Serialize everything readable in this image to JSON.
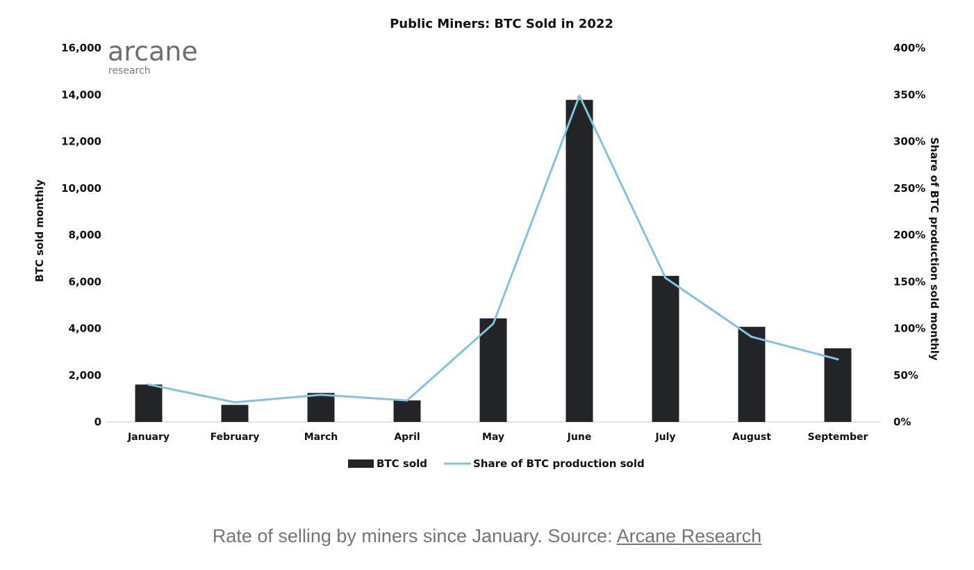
{
  "chart_data": {
    "type": "bar",
    "title": "Public Miners: BTC Sold in 2022",
    "xlabel": "",
    "ylabel": "BTC sold monthly",
    "y2label": "Share of BTC production sold monthly",
    "categories": [
      "January",
      "February",
      "March",
      "April",
      "May",
      "June",
      "July",
      "August",
      "September"
    ],
    "ylim": [
      0,
      16000
    ],
    "y2lim": [
      0,
      400
    ],
    "yticks": [
      "0",
      "2,000",
      "4,000",
      "6,000",
      "8,000",
      "10,000",
      "12,000",
      "14,000",
      "16,000"
    ],
    "y2ticks": [
      "0%",
      "50%",
      "100%",
      "150%",
      "200%",
      "250%",
      "300%",
      "350%",
      "400%"
    ],
    "grid": false,
    "legend_position": "bottom",
    "series": [
      {
        "name": "BTC sold",
        "type": "bar",
        "axis": "left",
        "color": "#222428",
        "values": [
          1600,
          730,
          1240,
          920,
          4430,
          13780,
          6250,
          4070,
          3150
        ]
      },
      {
        "name": "Share of BTC production sold",
        "type": "line",
        "axis": "right",
        "color": "#80c4e2",
        "values": [
          40,
          21,
          29,
          23,
          105,
          349,
          154,
          91,
          67
        ]
      }
    ]
  },
  "logo": {
    "name": "arcane",
    "subtitle": "research"
  },
  "caption": {
    "text": "Rate of selling by miners since January. Source: ",
    "link_text": "Arcane Research"
  },
  "colors": {
    "bar": "#222428",
    "line": "#80c4e2",
    "axis": "#d8d8d8",
    "text": "#111111",
    "logo": "#6e6e6e",
    "caption": "#757575"
  }
}
